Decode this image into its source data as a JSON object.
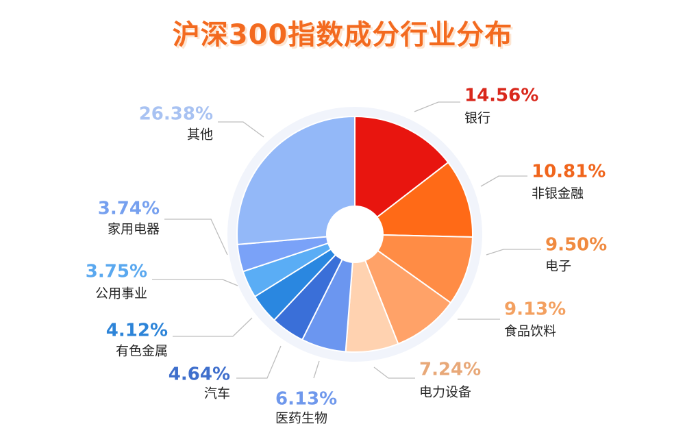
{
  "chart_data": {
    "type": "pie",
    "title": "沪深300指数成分行业分布",
    "slices": [
      {
        "category": "银行",
        "value_label": "14.56%",
        "value": 14.56,
        "color": "#e8150f"
      },
      {
        "category": "非银金融",
        "value_label": "10.81%",
        "value": 10.81,
        "color": "#ff6a17"
      },
      {
        "category": "电子",
        "value_label": "9.50%",
        "value": 9.5,
        "color": "#ff8c45"
      },
      {
        "category": "食品饮料",
        "value_label": "9.13%",
        "value": 9.13,
        "color": "#ffa268"
      },
      {
        "category": "电力设备",
        "value_label": "7.24%",
        "value": 7.24,
        "color": "#ffd2b0"
      },
      {
        "category": "医药生物",
        "value_label": "6.13%",
        "value": 6.13,
        "color": "#6b96f0"
      },
      {
        "category": "汽车",
        "value_label": "4.64%",
        "value": 4.64,
        "color": "#3a6fd8"
      },
      {
        "category": "有色金属",
        "value_label": "4.12%",
        "value": 4.12,
        "color": "#2a87e0"
      },
      {
        "category": "公用事业",
        "value_label": "3.75%",
        "value": 3.75,
        "color": "#5aadf5"
      },
      {
        "category": "家用电器",
        "value_label": "3.74%",
        "value": 3.74,
        "color": "#7aa2f8"
      },
      {
        "category": "其他",
        "value_label": "26.38%",
        "value": 26.38,
        "color": "#93b8f8"
      }
    ],
    "label_colors": {
      "银行": "#d9281c",
      "非银金融": "#f0651c",
      "电子": "#f08a40",
      "食品饮料": "#f3a060",
      "电力设备": "#e8a878",
      "医药生物": "#6f98ec",
      "汽车": "#3f6fcc",
      "有色金属": "#2d84d8",
      "公用事业": "#5aa8ef",
      "家用电器": "#76a0ef",
      "其他": "#a8c2f2"
    }
  }
}
